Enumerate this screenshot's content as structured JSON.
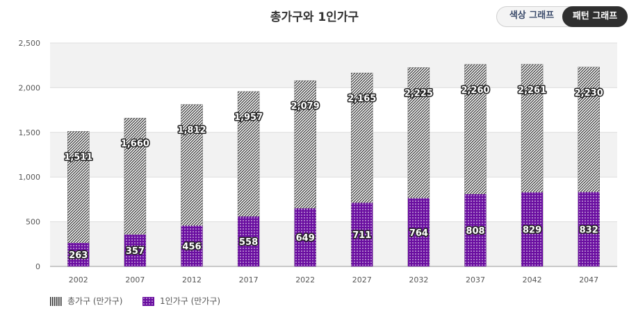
{
  "title": "총가구와 1인가구",
  "toggle": {
    "color_label": "색상 그래프",
    "pattern_label": "패턴 그래프",
    "active": "pattern"
  },
  "chart_data": {
    "type": "bar",
    "title": "총가구와 1인가구",
    "categories": [
      "2002",
      "2007",
      "2012",
      "2017",
      "2022",
      "2027",
      "2032",
      "2037",
      "2042",
      "2047"
    ],
    "series": [
      {
        "name": "총가구 (만가구)",
        "values": [
          1511,
          1660,
          1812,
          1957,
          2079,
          2165,
          2225,
          2260,
          2261,
          2230
        ]
      },
      {
        "name": "1인가구 (만가구)",
        "values": [
          263,
          357,
          456,
          558,
          649,
          711,
          764,
          808,
          829,
          832
        ]
      }
    ],
    "ylim": [
      0,
      2500
    ],
    "yticks": [
      0,
      500,
      1000,
      1500,
      2000,
      2500
    ],
    "ytick_labels": [
      "0",
      "500",
      "1,000",
      "1,500",
      "2,000",
      "2,500"
    ],
    "grid": true,
    "legend": "bottom-left",
    "colors": {
      "total_pattern_fg": "#333333",
      "single_fill": "#6a0ea0",
      "single_dot": "#ffffff"
    }
  },
  "legend": {
    "total_label": "총가구 (만가구)",
    "single_label": "1인가구 (만가구)"
  }
}
